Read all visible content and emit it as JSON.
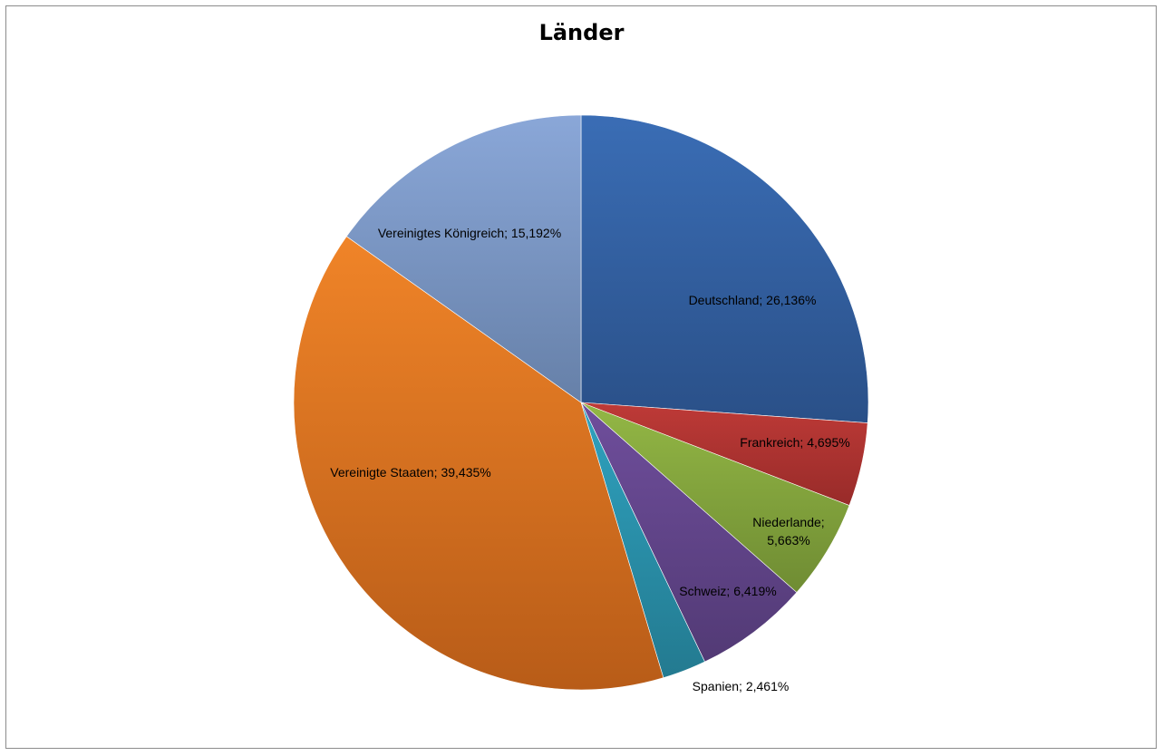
{
  "chart_data": {
    "type": "pie",
    "title": "Länder",
    "legend": "none",
    "slices": [
      {
        "name": "Deutschland",
        "value": 26.136,
        "label": "Deutschland; 26,136%",
        "color_start": "#3a6db5",
        "color_end": "#2a5088",
        "icon": "slice"
      },
      {
        "name": "Frankreich",
        "value": 4.695,
        "label": "Frankreich; 4,695%",
        "color_start": "#be3a37",
        "color_end": "#982b29"
      },
      {
        "name": "Niederlande",
        "value": 5.663,
        "label_lines": [
          "Niederlande;",
          "5,663%"
        ],
        "color_start": "#93b745",
        "color_end": "#6f8c33"
      },
      {
        "name": "Schweiz",
        "value": 6.419,
        "label": "Schweiz; 6,419%",
        "color_start": "#6f4e9c",
        "color_end": "#523a75"
      },
      {
        "name": "Spanien",
        "value": 2.461,
        "label": "Spanien; 2,461%",
        "color_start": "#2fa2bf",
        "color_end": "#237a90"
      },
      {
        "name": "Vereinigte Staaten",
        "value": 39.435,
        "label": "Vereinigte Staaten; 39,435%",
        "color_start": "#f08428",
        "color_end": "#b85c18"
      },
      {
        "name": "Vereinigtes Königreich",
        "value": 15.192,
        "label": "Vereinigtes Königreich; 15,192%",
        "color_start": "#8aa7d8",
        "color_end": "#6680a8"
      }
    ]
  }
}
